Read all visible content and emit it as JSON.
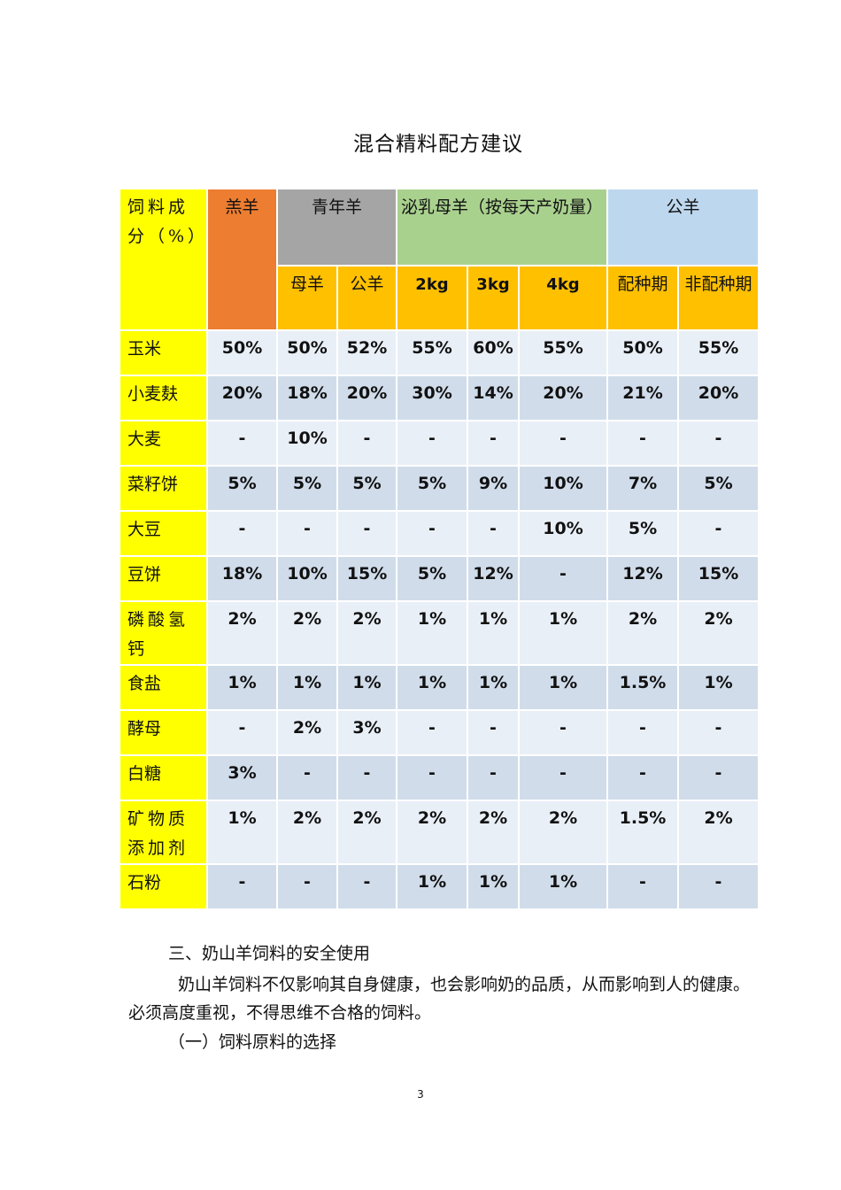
{
  "title": "混合精料配方建议",
  "table": {
    "corner_label": "饲料成分（%）",
    "group_headers": [
      {
        "label": "羔羊",
        "color": "#ed7d31"
      },
      {
        "label": "青年羊",
        "color": "#a5a5a5"
      },
      {
        "label": "泌乳母羊（按每天产奶量）",
        "color": "#a9d18e"
      },
      {
        "label": "公羊",
        "color": "#bdd7ee"
      }
    ],
    "sub_headers": [
      "母羊",
      "公羊",
      "2kg",
      "3kg",
      "4kg",
      "配种期",
      "非配种期"
    ],
    "sub_header_color": "#ffc000",
    "label_color": "#ffff00",
    "rows": [
      {
        "name": "玉米",
        "values": [
          "50%",
          "50%",
          "52%",
          "55%",
          "60%",
          "55%",
          "50%",
          "55%"
        ]
      },
      {
        "name": "小麦麸",
        "values": [
          "20%",
          "18%",
          "20%",
          "30%",
          "14%",
          "20%",
          "21%",
          "20%"
        ]
      },
      {
        "name": "大麦",
        "values": [
          "-",
          "10%",
          "-",
          "-",
          "-",
          "-",
          "-",
          "-"
        ]
      },
      {
        "name": "菜籽饼",
        "values": [
          "5%",
          "5%",
          "5%",
          "5%",
          "9%",
          "10%",
          "7%",
          "5%"
        ]
      },
      {
        "name": "大豆",
        "values": [
          "-",
          "-",
          "-",
          "-",
          "-",
          "10%",
          "5%",
          "-"
        ]
      },
      {
        "name": "豆饼",
        "values": [
          "18%",
          "10%",
          "15%",
          "5%",
          "12%",
          "-",
          "12%",
          "15%"
        ]
      },
      {
        "name": "磷酸氢钙",
        "values": [
          "2%",
          "2%",
          "2%",
          "1%",
          "1%",
          "1%",
          "2%",
          "2%"
        ]
      },
      {
        "name": "食盐",
        "values": [
          "1%",
          "1%",
          "1%",
          "1%",
          "1%",
          "1%",
          "1.5%",
          "1%"
        ]
      },
      {
        "name": "酵母",
        "values": [
          "-",
          "2%",
          "3%",
          "-",
          "-",
          "-",
          "-",
          "-"
        ]
      },
      {
        "name": "白糖",
        "values": [
          "3%",
          "-",
          "-",
          "-",
          "-",
          "-",
          "-",
          "-"
        ]
      },
      {
        "name": "矿物质添加剂",
        "values": [
          "1%",
          "2%",
          "2%",
          "2%",
          "2%",
          "2%",
          "1.5%",
          "2%"
        ]
      },
      {
        "name": "石粉",
        "values": [
          "-",
          "-",
          "-",
          "1%",
          "1%",
          "1%",
          "-",
          "-"
        ]
      }
    ]
  },
  "section_heading": "三、奶山羊饲料的安全使用",
  "paragraph": "奶山羊饲料不仅影响其自身健康，也会影响奶的品质，从而影响到人的健康。必须高度重视，不得思维不合格的饲料。",
  "subheading": "（一）饲料原料的选择",
  "page_number": "3"
}
